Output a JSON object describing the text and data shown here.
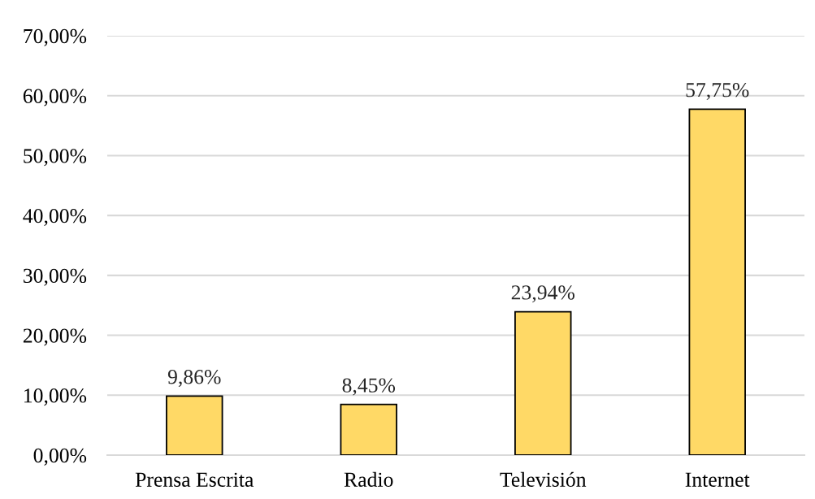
{
  "chart_data": {
    "type": "bar",
    "categories": [
      "Prensa Escrita",
      "Radio",
      "Televisión",
      "Internet"
    ],
    "values": [
      9.86,
      8.45,
      23.94,
      57.75
    ],
    "value_labels": [
      "9,86%",
      "8,45%",
      "23,94%",
      "57,75%"
    ],
    "color": "#ffd966",
    "ylim": [
      0,
      70
    ],
    "yticks": [
      {
        "value": 0,
        "label": "0,00%"
      },
      {
        "value": 10,
        "label": "10,00%"
      },
      {
        "value": 20,
        "label": "20,00%"
      },
      {
        "value": 30,
        "label": "30,00%"
      },
      {
        "value": 40,
        "label": "40,00%"
      },
      {
        "value": 50,
        "label": "50,00%"
      },
      {
        "value": 60,
        "label": "60,00%"
      },
      {
        "value": 70,
        "label": "70,00%"
      }
    ],
    "grid": "y",
    "legend": false
  }
}
